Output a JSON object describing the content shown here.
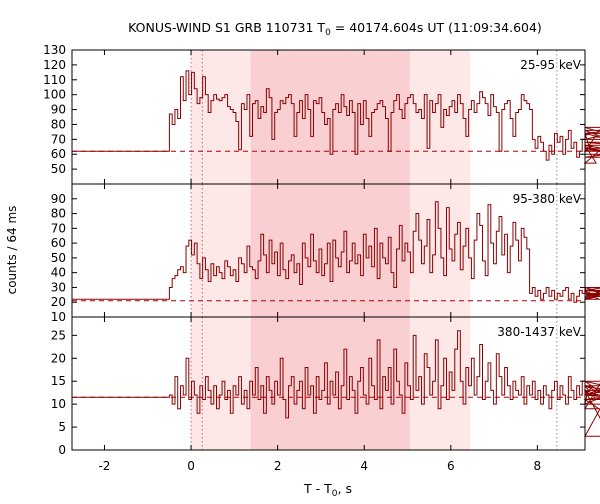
{
  "title_main": "KONUS-WIND S1 GRB 110731 T",
  "title_sub": "0",
  "title_rest": " = 40174.604s UT (11:09:34.604)",
  "ylabel": "counts / 64 ms",
  "xlabel_main": "T - T",
  "xlabel_sub": "0",
  "xlabel_rest": ", s",
  "colors": {
    "curve": "#8b0000",
    "background_line": "#b00000",
    "shade_light": "#fde7e7",
    "shade_dark": "#f9cfd2",
    "marker": "#d06060",
    "dotted_gray": "#888888",
    "axis": "#000000"
  },
  "chart_data": {
    "type": "line",
    "style": "step",
    "xlim": [
      -2.75,
      9.1
    ],
    "x_ticks": [
      -2,
      0,
      2,
      4,
      6,
      8
    ],
    "x_tick_labels": [
      "-2",
      "0",
      "2",
      "4",
      "6",
      "8"
    ],
    "shaded_intervals": [
      {
        "range": [
          0.0,
          6.45
        ],
        "shade": "light"
      },
      {
        "range": [
          1.38,
          5.05
        ],
        "shade": "dark"
      }
    ],
    "vertical_markers": [
      {
        "x": 0.0,
        "style": "red-dotted"
      },
      {
        "x": 0.26,
        "style": "red-dotted"
      },
      {
        "x": 8.45,
        "style": "gray-dotted"
      }
    ],
    "panels": [
      {
        "label": "25-95 keV",
        "ylim": [
          40,
          130
        ],
        "yticks": [
          50,
          60,
          70,
          80,
          90,
          100,
          110,
          120,
          130
        ],
        "ytick_labels": [
          "50",
          "60",
          "70",
          "80",
          "90",
          "100",
          "110",
          "120",
          "130"
        ],
        "background_level": 62,
        "pre_level": 62,
        "binned_start": -0.5,
        "bin_width": 0.064,
        "values": [
          87,
          80,
          90,
          84,
          112,
          96,
          116,
          100,
          115,
          104,
          94,
          98,
          112,
          100,
          88,
          96,
          100,
          97,
          96,
          98,
          100,
          92,
          90,
          88,
          82,
          63,
          94,
          90,
          100,
          72,
          94,
          96,
          84,
          92,
          88,
          104,
          98,
          70,
          88,
          90,
          96,
          94,
          98,
          100,
          94,
          72,
          88,
          96,
          84,
          100,
          90,
          72,
          96,
          94,
          98,
          88,
          80,
          84,
          60,
          90,
          94,
          88,
          100,
          92,
          86,
          96,
          88,
          60,
          94,
          80,
          96,
          84,
          72,
          88,
          90,
          94,
          96,
          92,
          84,
          62,
          88,
          96,
          100,
          90,
          84,
          94,
          98,
          100,
          94,
          88,
          90,
          84,
          100,
          64,
          96,
          88,
          94,
          100,
          78,
          90,
          86,
          92,
          96,
          88,
          100,
          94,
          84,
          72,
          90,
          96,
          88,
          94,
          102,
          98,
          94,
          86,
          100,
          92,
          88,
          62,
          90,
          94,
          96,
          84,
          72,
          88,
          90,
          100,
          96,
          94,
          90,
          70,
          64,
          72,
          68,
          62,
          56,
          66,
          60,
          74,
          68,
          72,
          60,
          70,
          76,
          64,
          68,
          58,
          62,
          70,
          72,
          74,
          62,
          66,
          54,
          62,
          78,
          74,
          70,
          74,
          76,
          68,
          66,
          62,
          64,
          58,
          62,
          64,
          60
        ]
      },
      {
        "label": "95-380 keV",
        "ylim": [
          10,
          100
        ],
        "yticks": [
          10,
          20,
          30,
          40,
          50,
          60,
          70,
          80,
          90
        ],
        "ytick_labels": [
          "10",
          "20",
          "30",
          "40",
          "50",
          "60",
          "70",
          "80",
          "90"
        ],
        "background_level": 21,
        "pre_level": 22,
        "binned_start": -0.5,
        "bin_width": 0.064,
        "values": [
          30,
          36,
          38,
          42,
          44,
          40,
          58,
          62,
          52,
          60,
          46,
          36,
          50,
          42,
          34,
          46,
          38,
          44,
          40,
          36,
          48,
          44,
          38,
          42,
          34,
          50,
          46,
          40,
          58,
          44,
          42,
          36,
          48,
          66,
          52,
          40,
          62,
          46,
          54,
          38,
          60,
          42,
          36,
          48,
          52,
          40,
          46,
          32,
          60,
          50,
          44,
          66,
          48,
          40,
          56,
          38,
          46,
          60,
          34,
          62,
          50,
          44,
          54,
          68,
          40,
          48,
          60,
          46,
          52,
          38,
          66,
          50,
          58,
          44,
          70,
          36,
          60,
          50,
          46,
          64,
          40,
          30,
          56,
          72,
          48,
          60,
          54,
          40,
          68,
          80,
          62,
          46,
          58,
          76,
          40,
          52,
          88,
          70,
          50,
          38,
          84,
          56,
          48,
          66,
          74,
          42,
          58,
          70,
          50,
          36,
          62,
          80,
          72,
          48,
          38,
          86,
          60,
          46,
          68,
          78,
          52,
          66,
          40,
          58,
          74,
          62,
          48,
          70,
          64,
          56,
          26,
          30,
          24,
          28,
          22,
          26,
          30,
          24,
          28,
          22,
          26,
          24,
          28,
          30,
          22,
          26,
          20,
          24,
          28,
          26,
          30,
          22,
          28,
          24,
          26,
          22,
          28,
          30,
          24,
          26,
          22,
          28,
          26,
          24,
          30,
          22,
          28,
          26,
          24
        ]
      },
      {
        "label": "380-1437 keV",
        "ylim": [
          0,
          29
        ],
        "yticks": [
          0,
          5,
          10,
          15,
          20,
          25
        ],
        "ytick_labels": [
          "0",
          "5",
          "10",
          "15",
          "20",
          "25"
        ],
        "background_level": 11.5,
        "pre_level": 11.5,
        "binned_start": -0.5,
        "bin_width": 0.064,
        "values": [
          12,
          10,
          16,
          9,
          14,
          12,
          20,
          11,
          15,
          12,
          8,
          14,
          11,
          16,
          13,
          10,
          14,
          9,
          12,
          15,
          11,
          13,
          8,
          14,
          12,
          16,
          10,
          13,
          9,
          15,
          12,
          18,
          11,
          14,
          8,
          16,
          13,
          10,
          15,
          12,
          20,
          11,
          7,
          14,
          16,
          10,
          13,
          15,
          9,
          18,
          12,
          14,
          8,
          16,
          11,
          13,
          19,
          10,
          15,
          12,
          17,
          9,
          14,
          22,
          11,
          16,
          13,
          8,
          15,
          18,
          12,
          10,
          20,
          14,
          11,
          24,
          9,
          16,
          13,
          18,
          10,
          22,
          15,
          12,
          8,
          19,
          14,
          11,
          25,
          13,
          16,
          10,
          21,
          18,
          12,
          15,
          24,
          9,
          14,
          20,
          11,
          17,
          13,
          22,
          26,
          15,
          10,
          18,
          14,
          20,
          12,
          16,
          23,
          11,
          15,
          19,
          13,
          10,
          21,
          16,
          12,
          18,
          14,
          11,
          15,
          13,
          12,
          16,
          10,
          14,
          12,
          15,
          11,
          13,
          10,
          14,
          12,
          9,
          13,
          15,
          11,
          14,
          12,
          10,
          16,
          13,
          11,
          14,
          12,
          15,
          10,
          13,
          12,
          14,
          11,
          9,
          15,
          12,
          13,
          3,
          14,
          11,
          12,
          15,
          13,
          10,
          14,
          12,
          11
        ]
      }
    ]
  }
}
